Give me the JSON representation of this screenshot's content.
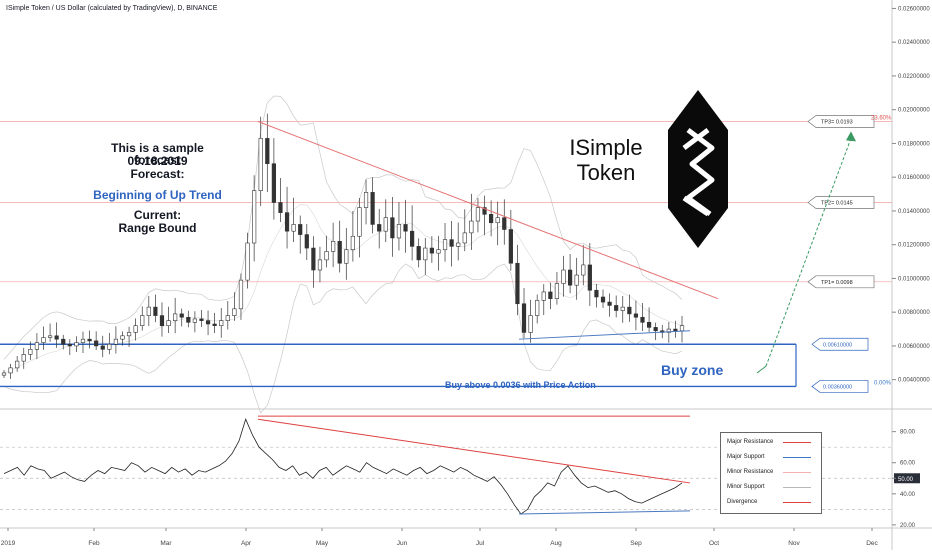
{
  "header": {
    "title": "ISimple Token / US Dollar (calculated by TradingView), D, BINANCE"
  },
  "notes": {
    "line1": "This is a sample forecast",
    "line2": "09.18.2019",
    "line3": "Forecast:",
    "forecast": "Beginning of Up Trend",
    "current_label": "Current:",
    "current": "Range Bound"
  },
  "logo_text": {
    "line1": "ISimple",
    "line2": "Token"
  },
  "zones": {
    "buy_zone": "Buy zone",
    "buy_above": "Buy above 0.0036 with Price Action"
  },
  "targets": [
    {
      "label": "TP3= 0.0193",
      "price": 0.0193
    },
    {
      "label": "TP2= 0.0145",
      "price": 0.0145
    },
    {
      "label": "TP1= 0.0098",
      "price": 0.0098
    }
  ],
  "zone_levels": [
    {
      "label": "0.00610000",
      "price": 0.0061
    },
    {
      "label": "0.00360000",
      "price": 0.0036
    }
  ],
  "fib_labels": {
    "top": "23.60%",
    "bottom": "0.00%"
  },
  "legend": [
    {
      "label": "Major Resistance",
      "color": "#e04040"
    },
    {
      "label": "Major Support",
      "color": "#3a78c8"
    },
    {
      "label": "Minor Resistance",
      "color": "#f2b0b0"
    },
    {
      "label": "Minor Support",
      "color": "#b8b8b8"
    },
    {
      "label": "Divergence",
      "color": "#e04040"
    }
  ],
  "colors": {
    "up_candle": "#333333",
    "down_candle": "#333333",
    "resistance": "#e57373",
    "support": "#4a78c0",
    "zone": "#2f64c0",
    "arrow": "#3a9a62"
  },
  "chart_data": {
    "type": "candlestick",
    "title": "ISimple Token / US Dollar (calculated by TradingView), D, BINANCE",
    "x_ticks": [
      "2019",
      "Feb",
      "Mar",
      "Apr",
      "May",
      "Jun",
      "Jul",
      "Aug",
      "Sep",
      "Oct",
      "Nov",
      "Dec"
    ],
    "price_axis": {
      "ticks": [
        "0.02600000",
        "0.02400000",
        "0.02200000",
        "0.02000000",
        "0.01800000",
        "0.01600000",
        "0.01400000",
        "0.01200000",
        "0.01000000",
        "0.00800000",
        "0.00600000",
        "0.00400000"
      ],
      "min": 0.0025,
      "max": 0.0265
    },
    "rsi_axis": {
      "ticks": [
        "80.00",
        "60.00",
        "50.00",
        "40.00",
        "20.00"
      ],
      "min": 18,
      "max": 92,
      "current_label": "50.00"
    },
    "close_series": [
      0.0044,
      0.0047,
      0.0051,
      0.0055,
      0.0058,
      0.0062,
      0.0065,
      0.0066,
      0.0064,
      0.0061,
      0.006,
      0.0062,
      0.0064,
      0.0063,
      0.006,
      0.0058,
      0.0061,
      0.0064,
      0.0066,
      0.0068,
      0.0072,
      0.0078,
      0.0083,
      0.0078,
      0.0072,
      0.0075,
      0.0079,
      0.0077,
      0.0074,
      0.0076,
      0.0075,
      0.0073,
      0.0072,
      0.0075,
      0.0078,
      0.0082,
      0.0099,
      0.0121,
      0.0152,
      0.0183,
      0.0168,
      0.0145,
      0.0139,
      0.0128,
      0.0132,
      0.0126,
      0.0118,
      0.0105,
      0.0111,
      0.0116,
      0.0122,
      0.0109,
      0.0117,
      0.0125,
      0.0142,
      0.0151,
      0.0132,
      0.0128,
      0.0136,
      0.0124,
      0.0132,
      0.0128,
      0.0119,
      0.0111,
      0.0118,
      0.0115,
      0.0117,
      0.0123,
      0.0119,
      0.0121,
      0.0127,
      0.0134,
      0.0142,
      0.0138,
      0.0133,
      0.0136,
      0.0129,
      0.0109,
      0.0085,
      0.0068,
      0.0078,
      0.0087,
      0.0092,
      0.0088,
      0.0097,
      0.0105,
      0.0096,
      0.0102,
      0.0108,
      0.0093,
      0.0089,
      0.0086,
      0.0084,
      0.0081,
      0.0083,
      0.0079,
      0.0077,
      0.0074,
      0.0071,
      0.0069,
      0.0068,
      0.007,
      0.0069,
      0.0072
    ],
    "rsi_series": [
      53,
      55,
      57,
      52,
      58,
      56,
      55,
      50,
      52,
      54,
      51,
      49,
      48,
      52,
      55,
      53,
      57,
      56,
      55,
      60,
      58,
      54,
      57,
      55,
      53,
      57,
      54,
      56,
      52,
      55,
      54,
      56,
      58,
      61,
      66,
      74,
      88,
      78,
      70,
      66,
      62,
      57,
      55,
      58,
      52,
      54,
      50,
      55,
      57,
      52,
      55,
      58,
      56,
      54,
      60,
      57,
      55,
      53,
      56,
      54,
      52,
      55,
      57,
      53,
      55,
      58,
      56,
      54,
      57,
      55,
      52,
      50,
      48,
      51,
      46,
      40,
      33,
      27,
      30,
      38,
      42,
      47,
      45,
      54,
      58,
      52,
      47,
      44,
      45,
      43,
      41,
      42,
      40,
      37,
      35,
      34,
      36,
      38,
      40,
      42,
      44,
      47
    ],
    "annotations": [
      "Major Resistance",
      "Major Support",
      "Minor Resistance",
      "Minor Support",
      "Divergence"
    ]
  }
}
